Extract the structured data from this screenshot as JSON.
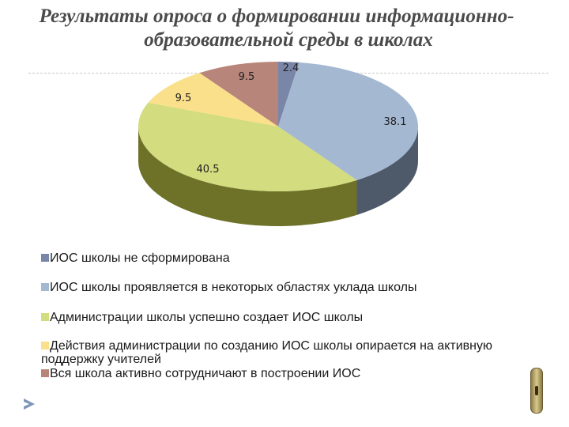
{
  "title": {
    "line1": "Результаты опроса о формировании информационно-",
    "line2": "образовательной среды в школах"
  },
  "chart_data": {
    "type": "pie",
    "style": "3d",
    "title": "Результаты опроса о формировании информационно-образовательной среды в школах",
    "categories": [
      "ИОС школы  не сформирована",
      "ИОС школы проявляется  в некоторых  областях уклада школы",
      "Администрации  школы  успешно  создает ИОС школы",
      "Действия  администрации по созданию ИОС школы опирается  на активную поддержку  учителей",
      "Вся школа активно сотрудничают в построении ИОС"
    ],
    "values": [
      2.4,
      38.1,
      40.5,
      9.5,
      9.5
    ],
    "value_labels": [
      "2.4",
      "38.1",
      "40.5",
      "9.5",
      "9.5"
    ],
    "colors": [
      "#7a86a8",
      "#a4b8d2",
      "#d3dc7e",
      "#fae08a",
      "#b8857a"
    ],
    "side_colors": [
      "#4a5670",
      "#4e5a6a",
      "#6e7228",
      "#9a8a3a",
      "#7a5044"
    ],
    "legend_placement": "bottom"
  }
}
